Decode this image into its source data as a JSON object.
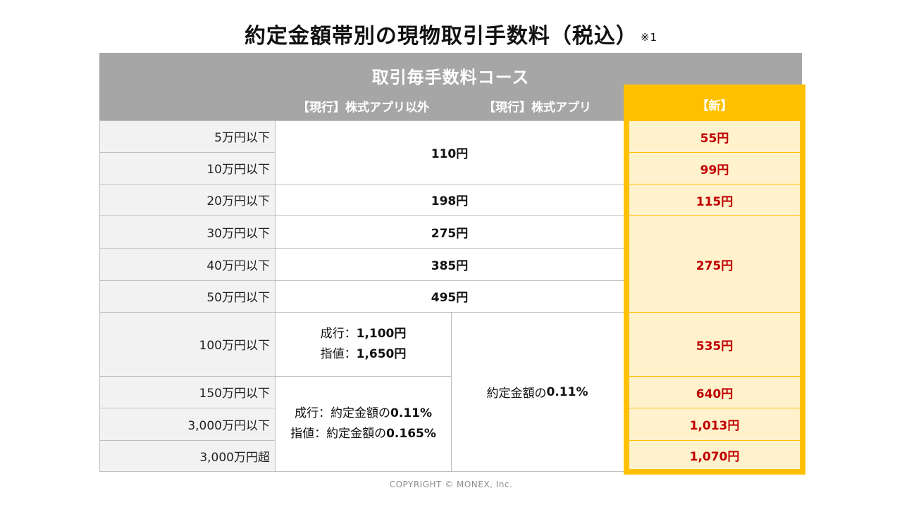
{
  "title": "約定金額帯別の現物取引手数料（税込）",
  "title_note": "※1",
  "course_title": "取引毎手数料コース",
  "col_current_other": "【現行】株式アプリ以外",
  "col_current_app": "【現行】株式アプリ",
  "col_new": "【新】",
  "rows": [
    {
      "label": "5万円以下",
      "new": "55円"
    },
    {
      "label": "10万円以下",
      "new": "99円"
    },
    {
      "label": "20万円以下",
      "new": "115円"
    },
    {
      "label": "30万円以下"
    },
    {
      "label": "40万円以下"
    },
    {
      "label": "50万円以下"
    },
    {
      "label": "100万円以下",
      "new": "535円"
    },
    {
      "label": "150万円以下",
      "new": "640円"
    },
    {
      "label": "3,000万円以下",
      "new": "1,013円"
    },
    {
      "label": "3,000万円超",
      "new": "1,070円"
    }
  ],
  "current": {
    "r1_2": "110円",
    "r3": "198円",
    "r4": "275円",
    "r5": "385円",
    "r6": "495円",
    "r7_market_prefix": "成行：",
    "r7_market_value": "1,100円",
    "r7_limit_prefix": "指値：",
    "r7_limit_value": "1,650円",
    "r8_10_market_prefix": "成行：約定金額の",
    "r8_10_market_value": "0.11%",
    "r8_10_limit_prefix": "指値：約定金額の",
    "r8_10_limit_value": "0.165%",
    "app_r7_10_prefix": "約定金額の",
    "app_r7_10_value": "0.11%"
  },
  "new_merged_r4_6": "275円",
  "copyright": "COPYRIGHT © MONEX, Inc.",
  "colors": {
    "header_gray": "#a6a6a6",
    "label_bg": "#f2f2f2",
    "new_border": "#ffc000",
    "new_bg": "#fff2cc",
    "new_text": "#c00000"
  }
}
